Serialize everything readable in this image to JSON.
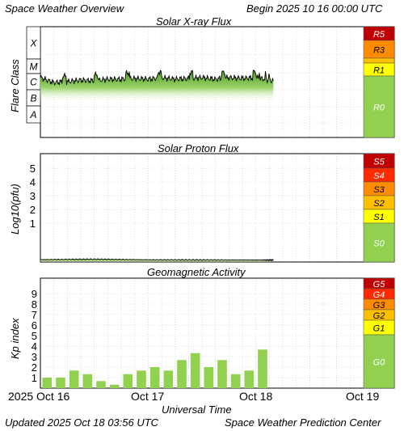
{
  "header": {
    "title": "Space Weather Overview",
    "begin": "Begin 2025 10 16 00:00 UTC"
  },
  "footer": {
    "updated": "Updated 2025 Oct 18 03:56 UTC",
    "center": "Space Weather Prediction Center",
    "xaxis_label": "Universal Time"
  },
  "x_ticks": [
    "2025 Oct 16",
    "Oct 17",
    "Oct 18",
    "Oct 19"
  ],
  "colors": {
    "green": "#92d050",
    "yellow": "#ffff00",
    "gold": "#ffc000",
    "orange": "#ff8c00",
    "red_orange": "#ff2a00",
    "dark_red": "#c00000"
  },
  "chart_data": [
    {
      "type": "area",
      "title": "Solar X-ray Flux",
      "ylabel": "Flare Class",
      "y_classes": [
        "X",
        "M",
        "C",
        "B",
        "A"
      ],
      "x_range_hours": [
        0,
        72
      ],
      "data_extent_hours": [
        0,
        51.9
      ],
      "level_series": {
        "name": "X-ray flux class level (A=1, B=2, C=3, M=4, X=5)",
        "x_hours": [
          0,
          3,
          6,
          9,
          12,
          15,
          18,
          21,
          24,
          27,
          30,
          33,
          36,
          39,
          42,
          45,
          48,
          51.9
        ],
        "values": [
          3.2,
          2.9,
          2.95,
          3.05,
          3.0,
          3.1,
          3.1,
          3.15,
          3.1,
          3.2,
          3.1,
          3.15,
          3.2,
          3.1,
          3.2,
          3.15,
          3.2,
          3.0
        ]
      },
      "scale": [
        {
          "label": "R5",
          "color": "#c00000"
        },
        {
          "label": "R3",
          "color": "#ff8c00"
        },
        {
          "label": "R1",
          "color": "#ffff00"
        },
        {
          "label": "R0",
          "color": "#92d050"
        }
      ]
    },
    {
      "type": "area",
      "title": "Solar Proton Flux",
      "ylabel": "Log10(pfu)",
      "y_ticks": [
        "5",
        "4",
        "3",
        "2",
        "1"
      ],
      "x_range_hours": [
        0,
        72
      ],
      "data_extent_hours": [
        0,
        51.9
      ],
      "series": [
        {
          "name": "",
          "x_hours": [
            0,
            12,
            24,
            36,
            48,
            51.9
          ],
          "values": [
            -1.65,
            -1.62,
            -1.66,
            -1.67,
            -1.68,
            -1.68
          ]
        }
      ],
      "scale": [
        {
          "label": "S5",
          "color": "#c00000"
        },
        {
          "label": "S4",
          "color": "#ff2a00"
        },
        {
          "label": "S3",
          "color": "#ff8c00"
        },
        {
          "label": "S2",
          "color": "#ffc000"
        },
        {
          "label": "S1",
          "color": "#ffff00"
        },
        {
          "label": "S0",
          "color": "#92d050"
        }
      ]
    },
    {
      "type": "bar",
      "title": "Geomagnetic Activity",
      "ylabel": "Kp index",
      "y_ticks": [
        "9",
        "8",
        "7",
        "6",
        "5",
        "4",
        "3",
        "2",
        "1"
      ],
      "ylim": [
        0,
        10
      ],
      "bar_width_hours": 3,
      "x_range_hours": [
        0,
        72
      ],
      "values": [
        1.0,
        1.0,
        1.67,
        1.33,
        0.67,
        0.33,
        1.33,
        1.67,
        2.0,
        1.67,
        2.67,
        3.33,
        2.0,
        2.67,
        1.33,
        1.67,
        3.67
      ],
      "scale": [
        {
          "label": "G5",
          "color": "#c00000"
        },
        {
          "label": "G4",
          "color": "#ff2a00"
        },
        {
          "label": "G3",
          "color": "#ff8c00"
        },
        {
          "label": "G2",
          "color": "#ffc000"
        },
        {
          "label": "G1",
          "color": "#ffff00"
        },
        {
          "label": "G0",
          "color": "#92d050"
        }
      ]
    }
  ]
}
